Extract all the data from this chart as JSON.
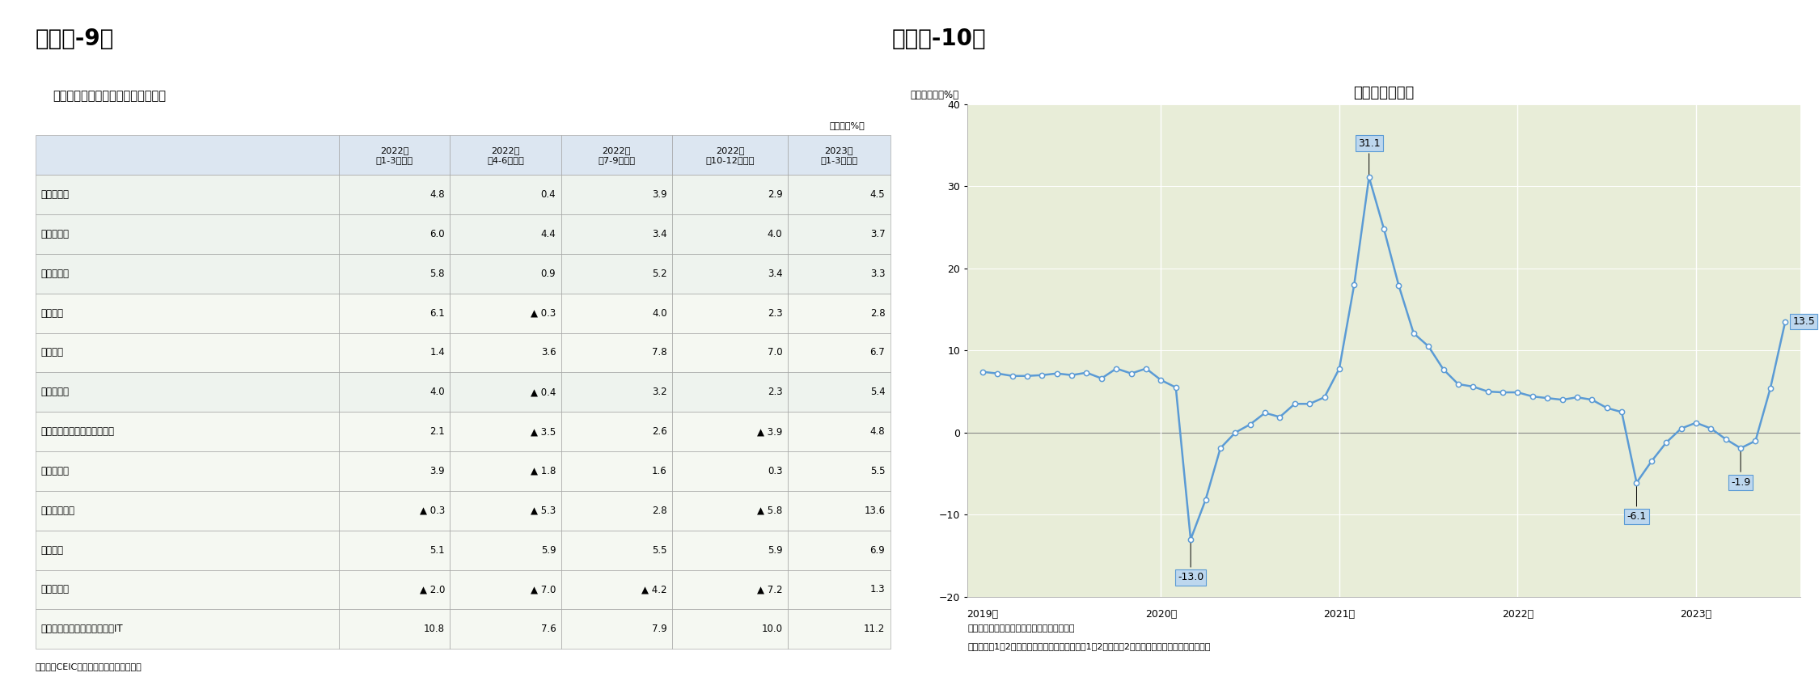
{
  "table_title": "産業別の実質成長率（前年同期比）",
  "table_unit": "（単位：%）",
  "fig9_title": "（図表-9）",
  "fig10_title": "（図表-10）",
  "source_left": "（資料）CEIC（出所は中国国家統計局）",
  "col_headers": [
    "",
    "2022年\n（1-3月期）",
    "2022年\n（4-6月期）",
    "2022年\n（7-9月期）",
    "2022年\n（10-12月期）",
    "2023年\n（1-3月期）"
  ],
  "rows": [
    {
      "label": "国内総生産",
      "values": [
        "4.8",
        "0.4",
        "3.9",
        "2.9",
        "4.5"
      ],
      "indent": 0
    },
    {
      "label": "第１次産業",
      "values": [
        "6.0",
        "4.4",
        "3.4",
        "4.0",
        "3.7"
      ],
      "indent": 0
    },
    {
      "label": "第２次産業",
      "values": [
        "5.8",
        "0.9",
        "5.2",
        "3.4",
        "3.3"
      ],
      "indent": 0
    },
    {
      "label": "　製造業",
      "values": [
        "6.1",
        "▲ 0.3",
        "4.0",
        "2.3",
        "2.8"
      ],
      "indent": 1
    },
    {
      "label": "　建築業",
      "values": [
        "1.4",
        "3.6",
        "7.8",
        "7.0",
        "6.7"
      ],
      "indent": 1
    },
    {
      "label": "第３次産業",
      "values": [
        "4.0",
        "▲ 0.4",
        "3.2",
        "2.3",
        "5.4"
      ],
      "indent": 0
    },
    {
      "label": "　交通・運輸・倉庫・郵便業",
      "values": [
        "2.1",
        "▲ 3.5",
        "2.6",
        "▲ 3.9",
        "4.8"
      ],
      "indent": 1
    },
    {
      "label": "　卸小売業",
      "values": [
        "3.9",
        "▲ 1.8",
        "1.6",
        "0.3",
        "5.5"
      ],
      "indent": 1
    },
    {
      "label": "　宿泊飲食業",
      "values": [
        "▲ 0.3",
        "▲ 5.3",
        "2.8",
        "▲ 5.8",
        "13.6"
      ],
      "indent": 1
    },
    {
      "label": "　金融業",
      "values": [
        "5.1",
        "5.9",
        "5.5",
        "5.9",
        "6.9"
      ],
      "indent": 1
    },
    {
      "label": "　不動産業",
      "values": [
        "▲ 2.0",
        "▲ 7.0",
        "▲ 4.2",
        "▲ 7.2",
        "1.3"
      ],
      "indent": 1
    },
    {
      "label": "　情報通信・ソフトウェア・IT",
      "values": [
        "10.8",
        "7.6",
        "7.9",
        "10.0",
        "11.2"
      ],
      "indent": 1
    }
  ],
  "chart_title": "サービス業生産",
  "y_label": "（前年同月比%）",
  "x_label_years": [
    "2019年",
    "2020年",
    "2021年",
    "2022年",
    "2023年"
  ],
  "ylim": [
    -20,
    40
  ],
  "yticks": [
    -20,
    -10,
    0,
    10,
    20,
    30,
    40
  ],
  "chart_bg": "#e8edd8",
  "line_color": "#5b9bd5",
  "marker_color": "#ffffff",
  "marker_edge_color": "#5b9bd5",
  "annotation_bg": "#bdd7ee",
  "series_x": [
    0,
    1,
    2,
    3,
    4,
    5,
    6,
    7,
    8,
    9,
    10,
    11,
    12,
    13,
    14,
    15,
    16,
    17,
    18,
    19,
    20,
    21,
    22,
    23,
    24,
    25,
    26,
    27,
    28,
    29,
    30,
    31,
    32,
    33,
    34,
    35,
    36,
    37,
    38,
    39,
    40,
    41,
    42,
    43,
    44,
    45,
    46,
    47,
    48,
    49,
    50,
    51,
    52,
    53,
    54
  ],
  "series_y": [
    7.4,
    7.2,
    6.9,
    6.9,
    7.0,
    7.2,
    7.0,
    7.3,
    6.6,
    7.8,
    7.2,
    7.8,
    6.4,
    5.5,
    -13.0,
    -8.2,
    -1.9,
    0.0,
    1.0,
    2.4,
    1.9,
    3.5,
    3.5,
    4.3,
    7.8,
    18.0,
    31.1,
    24.8,
    17.9,
    12.1,
    10.5,
    7.7,
    5.9,
    5.6,
    5.0,
    4.9,
    4.9,
    4.4,
    4.2,
    4.0,
    4.3,
    4.0,
    3.0,
    2.5,
    -6.1,
    -3.5,
    -1.2,
    0.5,
    1.2,
    0.5,
    -0.8,
    -1.9,
    -1.0,
    5.4,
    13.5
  ],
  "source_right1": "（資料）中国国家統計局のデータを元に作成",
  "source_right2": "（注）例年1・2月は春節の影響でぶれるため、1・2月は共に2月時点累計（前年同期比）を表示",
  "header_bg": "#dce6f1",
  "row_bg_main": "#eef3ee",
  "row_bg_sub": "#f5f8f2",
  "border_color": "#999999"
}
